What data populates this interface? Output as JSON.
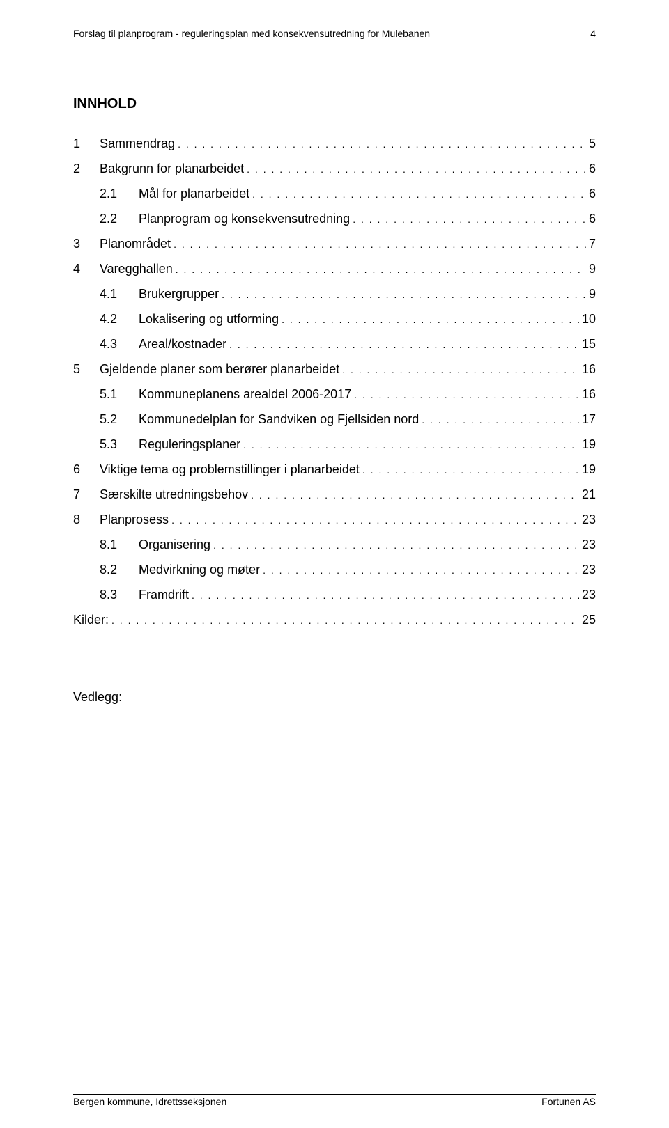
{
  "header": {
    "title": "Forslag til planprogram - reguleringsplan med konsekvensutredning for Mulebanen",
    "page_number": "4"
  },
  "toc": {
    "heading": "INNHOLD",
    "entries": [
      {
        "level": 1,
        "num": "1",
        "label": "Sammendrag",
        "page": "5"
      },
      {
        "level": 1,
        "num": "2",
        "label": "Bakgrunn for planarbeidet",
        "page": "6"
      },
      {
        "level": 2,
        "num": "2.1",
        "label": "Mål for planarbeidet",
        "page": "6"
      },
      {
        "level": 2,
        "num": "2.2",
        "label": "Planprogram og konsekvensutredning",
        "page": "6"
      },
      {
        "level": 1,
        "num": "3",
        "label": "Planområdet",
        "page": "7"
      },
      {
        "level": 1,
        "num": "4",
        "label": "Varegghallen",
        "page": "9"
      },
      {
        "level": 2,
        "num": "4.1",
        "label": "Brukergrupper",
        "page": "9"
      },
      {
        "level": 2,
        "num": "4.2",
        "label": "Lokalisering og utforming",
        "page": "10"
      },
      {
        "level": 2,
        "num": "4.3",
        "label": "Areal/kostnader",
        "page": "15"
      },
      {
        "level": 1,
        "num": "5",
        "label": "Gjeldende planer som berører planarbeidet",
        "page": "16"
      },
      {
        "level": 2,
        "num": "5.1",
        "label": "Kommuneplanens arealdel 2006-2017",
        "page": "16"
      },
      {
        "level": 2,
        "num": "5.2",
        "label": "Kommunedelplan for Sandviken og Fjellsiden nord",
        "page": "17"
      },
      {
        "level": 2,
        "num": "5.3",
        "label": "Reguleringsplaner",
        "page": "19"
      },
      {
        "level": 1,
        "num": "6",
        "label": "Viktige tema og problemstillinger i planarbeidet",
        "page": "19"
      },
      {
        "level": 1,
        "num": "7",
        "label": "Særskilte utredningsbehov",
        "page": "21"
      },
      {
        "level": 1,
        "num": "8",
        "label": "Planprosess",
        "page": "23"
      },
      {
        "level": 2,
        "num": "8.1",
        "label": "Organisering",
        "page": "23"
      },
      {
        "level": 2,
        "num": "8.2",
        "label": "Medvirkning og møter",
        "page": "23"
      },
      {
        "level": 2,
        "num": "8.3",
        "label": "Framdrift",
        "page": "23"
      },
      {
        "level": 1,
        "num": "",
        "label": "Kilder:",
        "page": "25"
      }
    ],
    "appendix_label": "Vedlegg:"
  },
  "footer": {
    "left": "Bergen kommune, Idrettsseksjonen",
    "right": "Fortunen AS"
  },
  "style": {
    "page_bg": "#ffffff",
    "text_color": "#000000",
    "rule_color": "#000000",
    "body_font_size_pt": 13,
    "heading_font_size_pt": 15,
    "header_font_size_pt": 10
  }
}
